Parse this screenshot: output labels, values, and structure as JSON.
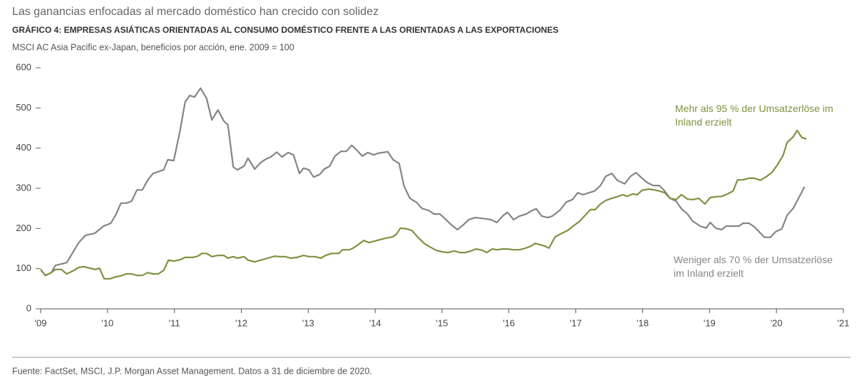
{
  "chart_data": {
    "type": "line",
    "title": "Las ganancias enfocadas al mercado doméstico han crecido con solidez",
    "subtitle": "GRÁFICO 4: EMPRESAS ASIÁTICAS ORIENTADAS AL CONSUMO DOMÉSTICO FRENTE A LAS ORIENTADAS A LAS EXPORTACIONES",
    "y_label": "MSCI AC Asia Pacific ex-Japan, beneficios por acción, ene. 2009 = 100",
    "source": "Fuente: FactSet, MSCI, J.P. Morgan Asset Management. Datos a 31 de diciembre de 2020.",
    "xlim": [
      2009,
      2021
    ],
    "xticks": [
      {
        "value": 2009,
        "label": "'09"
      },
      {
        "value": 2010,
        "label": "'10"
      },
      {
        "value": 2011,
        "label": "'11"
      },
      {
        "value": 2012,
        "label": "'12"
      },
      {
        "value": 2013,
        "label": "'13"
      },
      {
        "value": 2014,
        "label": "'14"
      },
      {
        "value": 2015,
        "label": "'15"
      },
      {
        "value": 2016,
        "label": "'16"
      },
      {
        "value": 2017,
        "label": "'17"
      },
      {
        "value": 2018,
        "label": "'18"
      },
      {
        "value": 2019,
        "label": "'19"
      },
      {
        "value": 2020,
        "label": "'20"
      },
      {
        "value": 2021,
        "label": "'21"
      }
    ],
    "ylim": [
      0,
      600
    ],
    "yticks": [
      0,
      100,
      200,
      300,
      400,
      500,
      600
    ],
    "grid": false,
    "series": [
      {
        "name": "Weniger als 70 % der Umsatzerlöse im Inland erzielt",
        "color": "#858585",
        "x": [
          2009.0,
          2009.07,
          2009.16,
          2009.22,
          2009.39,
          2009.57,
          2009.67,
          2009.81,
          2009.94,
          2010.05,
          2010.13,
          2010.2,
          2010.28,
          2010.36,
          2010.44,
          2010.52,
          2010.6,
          2010.68,
          2010.84,
          2010.9,
          2010.99,
          2011.08,
          2011.16,
          2011.23,
          2011.3,
          2011.39,
          2011.48,
          2011.56,
          2011.65,
          2011.74,
          2011.8,
          2011.88,
          2011.94,
          2012.04,
          2012.1,
          2012.2,
          2012.29,
          2012.37,
          2012.44,
          2012.53,
          2012.61,
          2012.7,
          2012.78,
          2012.87,
          2012.93,
          2013.01,
          2013.08,
          2013.17,
          2013.24,
          2013.32,
          2013.4,
          2013.49,
          2013.57,
          2013.65,
          2013.72,
          2013.81,
          2013.89,
          2013.98,
          2014.04,
          2014.19,
          2014.27,
          2014.36,
          2014.43,
          2014.52,
          2014.62,
          2014.7,
          2014.8,
          2014.88,
          2014.97,
          2015.06,
          2015.14,
          2015.23,
          2015.32,
          2015.4,
          2015.5,
          2015.61,
          2015.73,
          2015.82,
          2015.92,
          2015.98,
          2016.07,
          2016.16,
          2016.26,
          2016.35,
          2016.41,
          2016.49,
          2016.58,
          2016.65,
          2016.76,
          2016.86,
          2016.95,
          2017.03,
          2017.11,
          2017.2,
          2017.28,
          2017.37,
          2017.45,
          2017.54,
          2017.62,
          2017.73,
          2017.82,
          2017.9,
          2017.99,
          2018.07,
          2018.16,
          2018.25,
          2018.33,
          2018.41,
          2018.5,
          2018.58,
          2018.67,
          2018.75,
          2018.86,
          2018.95,
          2019.01,
          2019.09,
          2019.18,
          2019.25,
          2019.35,
          2019.44,
          2019.5,
          2019.59,
          2019.67,
          2019.74,
          2019.82,
          2019.91,
          2019.99,
          2020.08,
          2020.16,
          2020.25,
          2020.33,
          2020.42
        ],
        "values": [
          98,
          83,
          90,
          108,
          115,
          165,
          183,
          188,
          206,
          213,
          236,
          263,
          263,
          268,
          296,
          296,
          320,
          337,
          346,
          371,
          369,
          440,
          515,
          531,
          527,
          549,
          524,
          470,
          495,
          467,
          458,
          353,
          346,
          355,
          375,
          348,
          364,
          373,
          378,
          390,
          378,
          389,
          383,
          337,
          350,
          346,
          328,
          334,
          348,
          355,
          380,
          392,
          392,
          407,
          396,
          380,
          389,
          383,
          387,
          391,
          371,
          362,
          307,
          275,
          265,
          250,
          245,
          236,
          236,
          222,
          209,
          197,
          209,
          222,
          227,
          225,
          222,
          215,
          233,
          240,
          222,
          231,
          236,
          245,
          249,
          231,
          227,
          231,
          245,
          266,
          272,
          289,
          284,
          289,
          293,
          307,
          330,
          337,
          320,
          311,
          330,
          339,
          325,
          314,
          307,
          307,
          293,
          275,
          268,
          249,
          236,
          218,
          206,
          201,
          215,
          201,
          197,
          206,
          206,
          206,
          213,
          213,
          204,
          192,
          178,
          178,
          192,
          199,
          233,
          250,
          275,
          304
        ]
      },
      {
        "name": "Mehr als 95 % der Umsatzerlöse im Inland erzielt",
        "color": "#7d9240",
        "x": [
          2009.0,
          2009.07,
          2009.16,
          2009.22,
          2009.31,
          2009.39,
          2009.48,
          2009.57,
          2009.65,
          2009.74,
          2009.82,
          2009.88,
          2009.95,
          2010.04,
          2010.13,
          2010.2,
          2010.28,
          2010.36,
          2010.44,
          2010.52,
          2010.6,
          2010.68,
          2010.76,
          2010.84,
          2010.91,
          2010.99,
          2011.08,
          2011.16,
          2011.27,
          2011.35,
          2011.41,
          2011.48,
          2011.56,
          2011.65,
          2011.74,
          2011.8,
          2011.88,
          2011.94,
          2012.04,
          2012.1,
          2012.2,
          2012.29,
          2012.39,
          2012.5,
          2012.57,
          2012.66,
          2012.74,
          2012.83,
          2012.93,
          2013.01,
          2013.1,
          2013.19,
          2013.26,
          2013.35,
          2013.46,
          2013.51,
          2013.62,
          2013.69,
          2013.75,
          2013.83,
          2013.91,
          2014.0,
          2014.07,
          2014.16,
          2014.26,
          2014.32,
          2014.38,
          2014.47,
          2014.55,
          2014.64,
          2014.74,
          2014.82,
          2014.91,
          2015.0,
          2015.09,
          2015.18,
          2015.27,
          2015.35,
          2015.43,
          2015.51,
          2015.6,
          2015.67,
          2015.75,
          2015.82,
          2015.91,
          2015.98,
          2016.07,
          2016.16,
          2016.25,
          2016.33,
          2016.39,
          2016.46,
          2016.54,
          2016.6,
          2016.69,
          2016.79,
          2016.88,
          2016.96,
          2017.05,
          2017.13,
          2017.22,
          2017.29,
          2017.37,
          2017.45,
          2017.54,
          2017.62,
          2017.7,
          2017.77,
          2017.85,
          2017.92,
          2017.99,
          2018.09,
          2018.18,
          2018.25,
          2018.33,
          2018.41,
          2018.5,
          2018.58,
          2018.67,
          2018.75,
          2018.84,
          2018.93,
          2019.01,
          2019.1,
          2019.18,
          2019.27,
          2019.35,
          2019.42,
          2019.5,
          2019.59,
          2019.67,
          2019.76,
          2019.84,
          2019.93,
          2020.01,
          2020.1,
          2020.16,
          2020.25,
          2020.31,
          2020.38,
          2020.45
        ],
        "values": [
          98,
          83,
          90,
          98,
          98,
          87,
          94,
          103,
          105,
          101,
          98,
          101,
          75,
          75,
          80,
          82,
          87,
          87,
          83,
          83,
          90,
          87,
          87,
          96,
          121,
          119,
          122,
          128,
          128,
          131,
          138,
          138,
          130,
          133,
          133,
          126,
          130,
          126,
          130,
          121,
          117,
          121,
          126,
          131,
          130,
          130,
          126,
          128,
          133,
          130,
          130,
          126,
          133,
          138,
          138,
          147,
          147,
          153,
          160,
          170,
          165,
          169,
          172,
          176,
          179,
          186,
          201,
          199,
          195,
          178,
          162,
          154,
          146,
          142,
          140,
          144,
          140,
          140,
          144,
          149,
          146,
          140,
          149,
          147,
          149,
          149,
          147,
          147,
          151,
          156,
          163,
          160,
          156,
          151,
          179,
          188,
          195,
          206,
          217,
          231,
          247,
          247,
          261,
          270,
          275,
          279,
          284,
          280,
          286,
          284,
          295,
          298,
          296,
          293,
          289,
          275,
          272,
          284,
          273,
          272,
          275,
          261,
          277,
          279,
          280,
          286,
          293,
          321,
          321,
          325,
          325,
          320,
          328,
          339,
          357,
          382,
          414,
          428,
          444,
          426,
          423
        ]
      }
    ]
  }
}
